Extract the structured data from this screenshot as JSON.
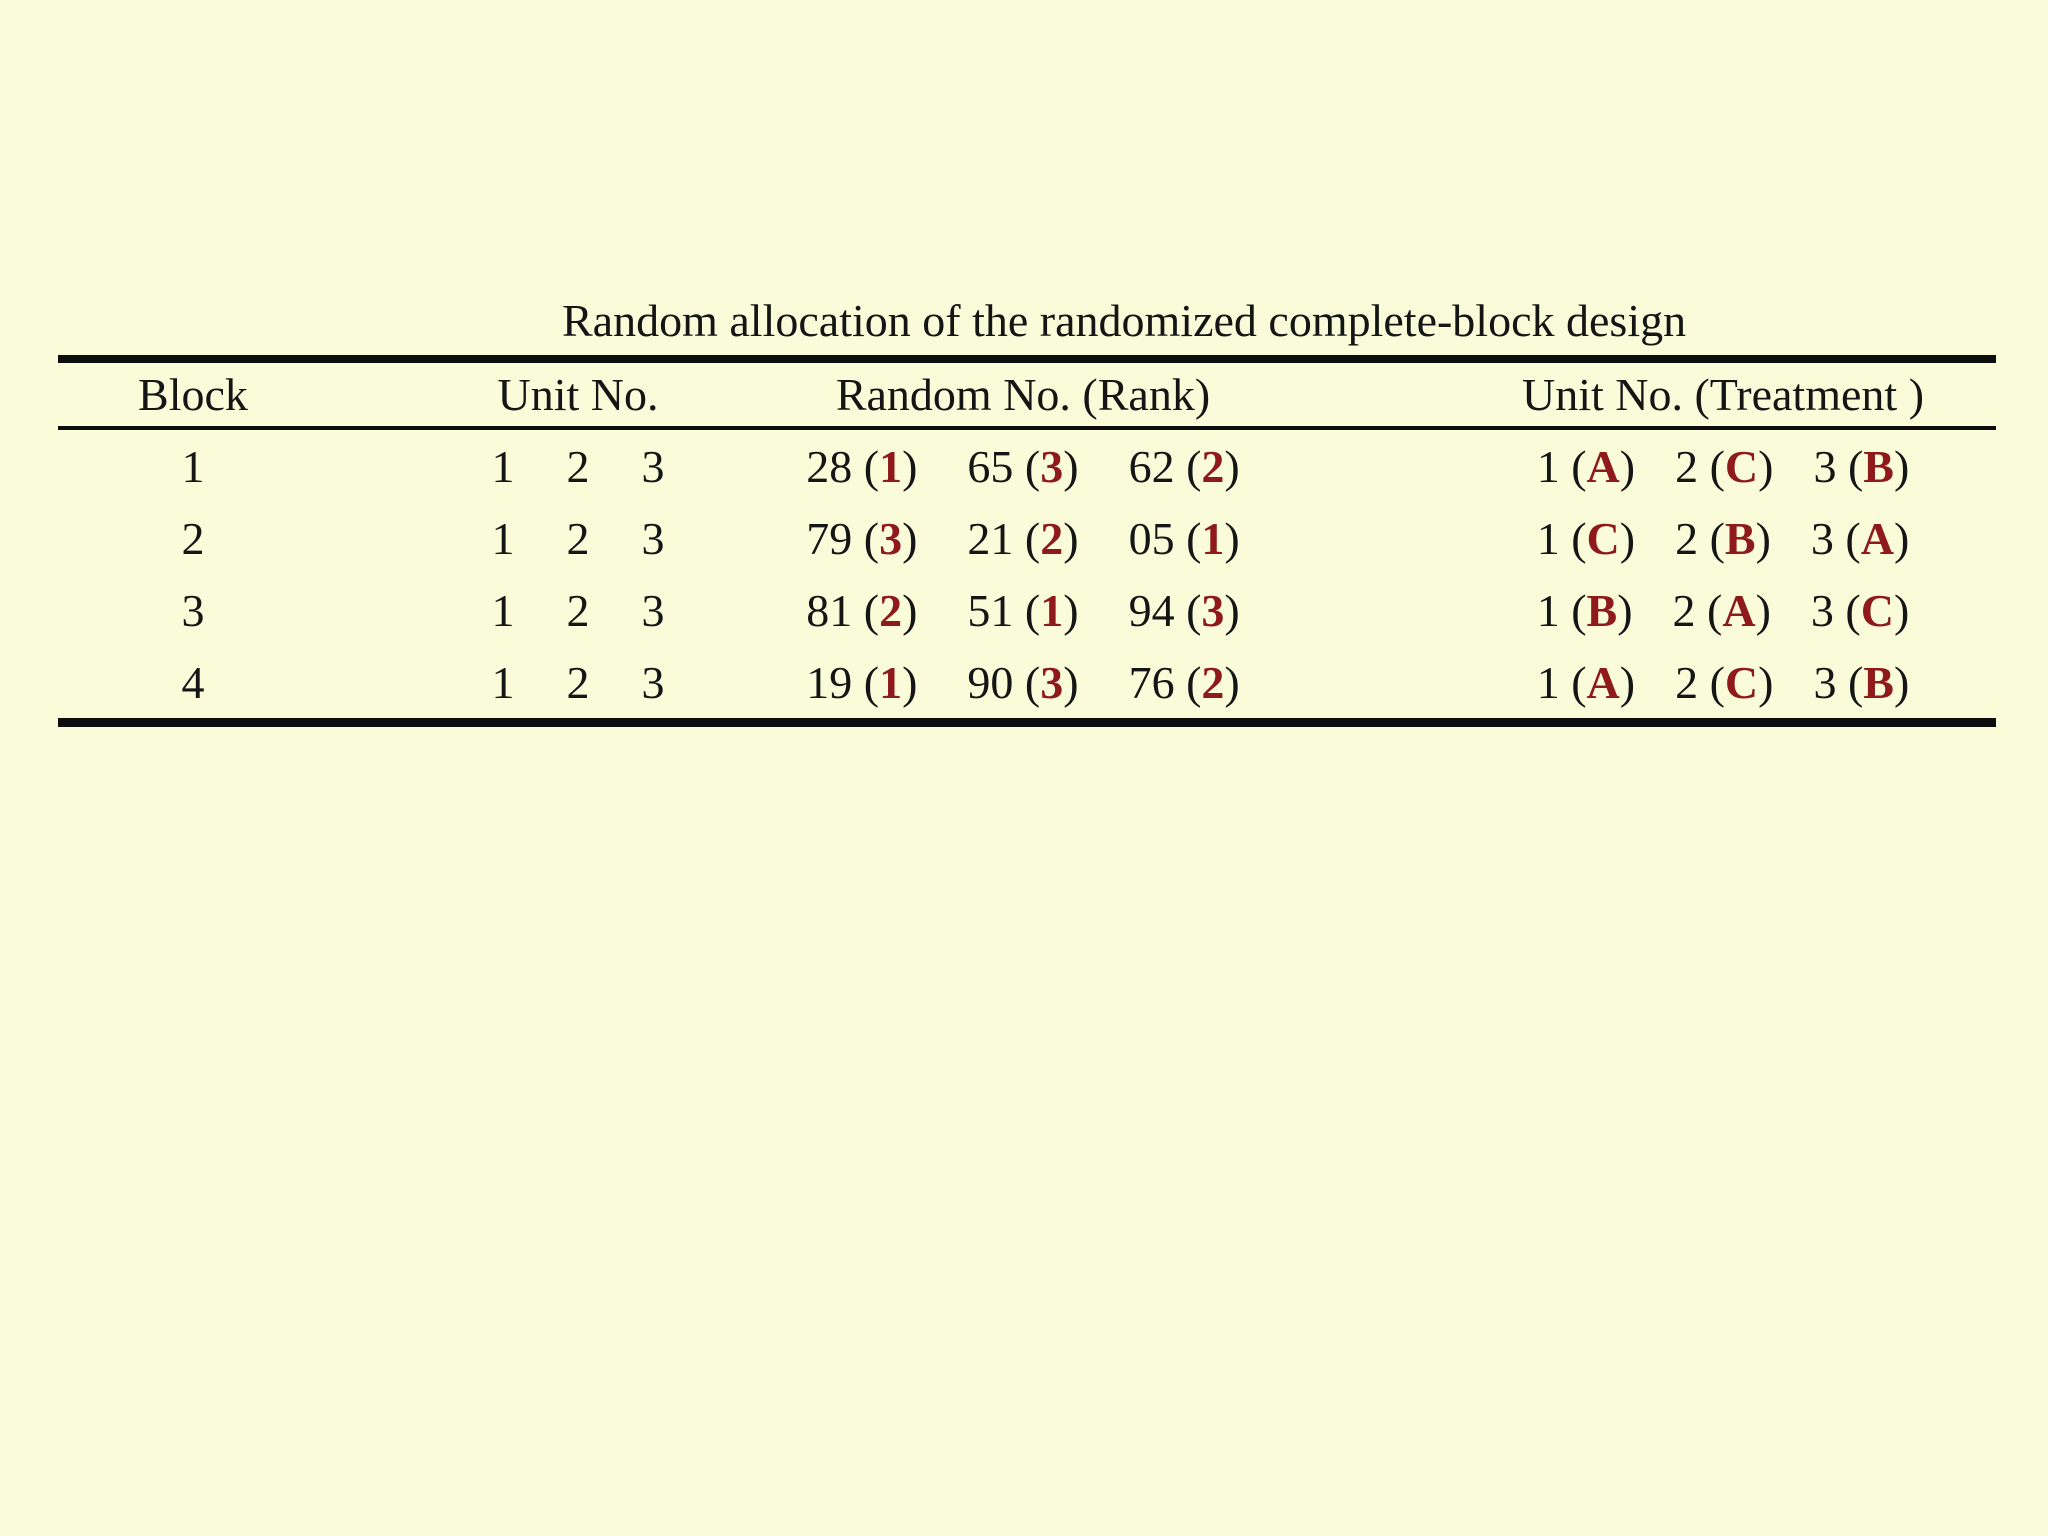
{
  "page": {
    "background_color": "#FAFBD9",
    "text_color": "#151515",
    "accent_red": "#8E1A1C"
  },
  "title": "Random allocation of the randomized complete-block design",
  "table": {
    "headers": {
      "block": "Block",
      "unit_no": "Unit No.",
      "random_no": "Random No. (Rank)",
      "unit_treatment": "Unit No. (Treatment )"
    },
    "rows": [
      {
        "block": "1",
        "units": [
          "1",
          "2",
          "3"
        ],
        "random": [
          {
            "prefix": "28 (",
            "rank": "1",
            "suffix": ")"
          },
          {
            "prefix": "65 (",
            "rank": "3",
            "suffix": ")"
          },
          {
            "prefix": "62 (",
            "rank": "2",
            "suffix": ")"
          }
        ],
        "treatments": [
          {
            "prefix": "1 (",
            "letter": "A",
            "suffix": ")"
          },
          {
            "prefix": "2 (",
            "letter": "C",
            "suffix": ")"
          },
          {
            "prefix": "3 (",
            "letter": "B",
            "suffix": ")"
          }
        ]
      },
      {
        "block": "2",
        "units": [
          "1",
          "2",
          "3"
        ],
        "random": [
          {
            "prefix": "79 (",
            "rank": "3",
            "suffix": ")"
          },
          {
            "prefix": "21 (",
            "rank": "2",
            "suffix": ")"
          },
          {
            "prefix": "05 (",
            "rank": "1",
            "suffix": ")"
          }
        ],
        "treatments": [
          {
            "prefix": "1 (",
            "letter": "C",
            "suffix": ")"
          },
          {
            "prefix": "2 (",
            "letter": "B",
            "suffix": ")"
          },
          {
            "prefix": "3 (",
            "letter": "A",
            "suffix": ")"
          }
        ]
      },
      {
        "block": "3",
        "units": [
          "1",
          "2",
          "3"
        ],
        "random": [
          {
            "prefix": "81 (",
            "rank": "2",
            "suffix": ")"
          },
          {
            "prefix": "51 (",
            "rank": "1",
            "suffix": ")"
          },
          {
            "prefix": "94 (",
            "rank": "3",
            "suffix": ")"
          }
        ],
        "treatments": [
          {
            "prefix": "1 (",
            "letter": "B",
            "suffix": ")"
          },
          {
            "prefix": "2 (",
            "letter": "A",
            "suffix": ")"
          },
          {
            "prefix": "3 (",
            "letter": "C",
            "suffix": ")"
          }
        ]
      },
      {
        "block": "4",
        "units": [
          "1",
          "2",
          "3"
        ],
        "random": [
          {
            "prefix": "19 (",
            "rank": "1",
            "suffix": ")"
          },
          {
            "prefix": "90 (",
            "rank": "3",
            "suffix": ")"
          },
          {
            "prefix": "76 (",
            "rank": "2",
            "suffix": ")"
          }
        ],
        "treatments": [
          {
            "prefix": "1 (",
            "letter": "A",
            "suffix": ")"
          },
          {
            "prefix": "2 (",
            "letter": "C",
            "suffix": ")"
          },
          {
            "prefix": "3 (",
            "letter": "B",
            "suffix": ")"
          }
        ]
      }
    ]
  }
}
